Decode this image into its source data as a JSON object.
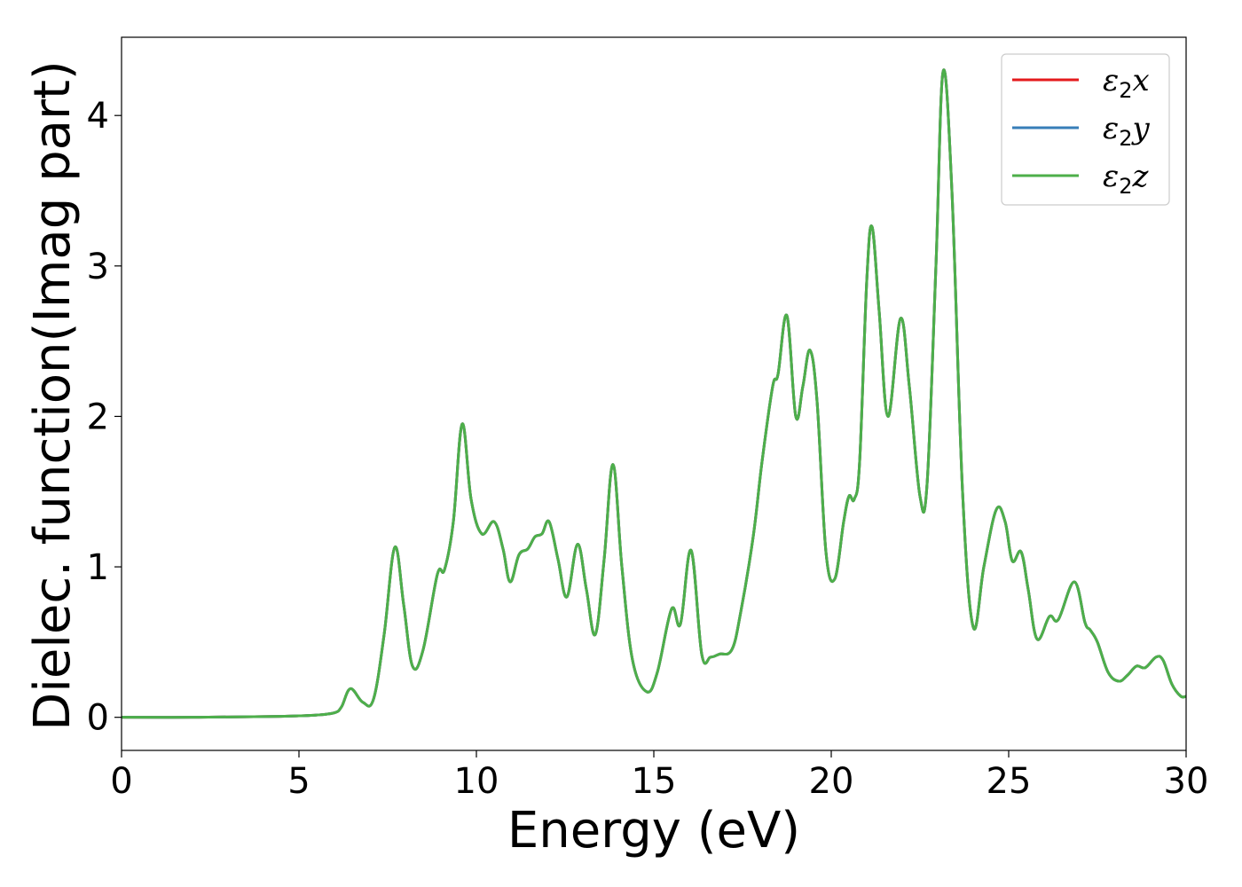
{
  "chart_data": {
    "type": "line",
    "title": "",
    "xlabel": "Energy (eV)",
    "ylabel": "Dielec. function(Imag part)",
    "xlim": [
      0,
      30
    ],
    "ylim": [
      -0.22,
      4.52
    ],
    "xticks": [
      0,
      5,
      10,
      15,
      20,
      25,
      30
    ],
    "yticks": [
      0,
      1,
      2,
      3,
      4
    ],
    "grid": false,
    "legend_position": "top-right",
    "series": [
      {
        "name": "ε2x",
        "base": "ε",
        "sub": "2",
        "var": "x",
        "color": "#e41a1c"
      },
      {
        "name": "ε2y",
        "base": "ε",
        "sub": "2",
        "var": "y",
        "color": "#377eb8"
      },
      {
        "name": "ε2z",
        "base": "ε",
        "sub": "2",
        "var": "z",
        "color": "#4daf4a"
      }
    ],
    "x": [
      0,
      2,
      4,
      5,
      5.5,
      6.0,
      6.2,
      6.45,
      6.8,
      7.1,
      7.4,
      7.7,
      7.95,
      8.2,
      8.5,
      8.9,
      9.1,
      9.35,
      9.6,
      9.85,
      10.15,
      10.5,
      10.75,
      10.95,
      11.2,
      11.45,
      11.65,
      11.85,
      12.05,
      12.3,
      12.55,
      12.85,
      13.1,
      13.35,
      13.6,
      13.85,
      14.1,
      14.4,
      14.8,
      15.1,
      15.5,
      15.75,
      16.05,
      16.35,
      16.6,
      16.85,
      17.2,
      17.45,
      17.8,
      18.05,
      18.35,
      18.5,
      18.75,
      19.0,
      19.2,
      19.4,
      19.6,
      19.85,
      20.1,
      20.35,
      20.5,
      20.65,
      20.8,
      21.0,
      21.15,
      21.35,
      21.6,
      21.95,
      22.2,
      22.5,
      22.7,
      22.95,
      23.15,
      23.4,
      23.7,
      24.0,
      24.3,
      24.65,
      24.9,
      25.1,
      25.35,
      25.55,
      25.8,
      26.15,
      26.4,
      26.85,
      27.15,
      27.3,
      27.5,
      27.8,
      28.1,
      28.35,
      28.6,
      28.85,
      29.15,
      29.35,
      29.6,
      29.85,
      30
    ],
    "y": [
      0.0,
      0.0,
      0.005,
      0.01,
      0.015,
      0.03,
      0.07,
      0.19,
      0.1,
      0.12,
      0.55,
      1.13,
      0.75,
      0.34,
      0.45,
      0.95,
      0.98,
      1.3,
      1.95,
      1.45,
      1.22,
      1.3,
      1.12,
      0.9,
      1.08,
      1.12,
      1.2,
      1.22,
      1.3,
      1.05,
      0.8,
      1.15,
      0.85,
      0.55,
      1.05,
      1.68,
      1.0,
      0.38,
      0.17,
      0.3,
      0.72,
      0.62,
      1.11,
      0.42,
      0.4,
      0.42,
      0.45,
      0.7,
      1.2,
      1.7,
      2.2,
      2.28,
      2.67,
      2.0,
      2.2,
      2.44,
      2.1,
      1.1,
      0.92,
      1.3,
      1.47,
      1.45,
      1.7,
      2.9,
      3.26,
      2.7,
      2.0,
      2.65,
      2.2,
      1.47,
      1.55,
      3.0,
      4.29,
      3.5,
      1.5,
      0.6,
      1.0,
      1.38,
      1.3,
      1.04,
      1.1,
      0.85,
      0.52,
      0.67,
      0.65,
      0.9,
      0.63,
      0.58,
      0.5,
      0.3,
      0.24,
      0.28,
      0.34,
      0.33,
      0.4,
      0.38,
      0.22,
      0.14,
      0.14
    ]
  }
}
